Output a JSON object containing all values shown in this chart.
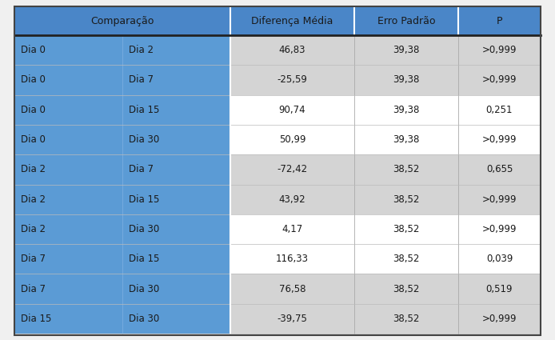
{
  "header": [
    "Comparação",
    "Diferença Média",
    "Erro Padrão",
    "P"
  ],
  "rows": [
    [
      "Dia 0",
      "Dia 2",
      "46,83",
      "39,38",
      ">0,999"
    ],
    [
      "Dia 0",
      "Dia 7",
      "-25,59",
      "39,38",
      ">0,999"
    ],
    [
      "Dia 0",
      "Dia 15",
      "90,74",
      "39,38",
      "0,251"
    ],
    [
      "Dia 0",
      "Dia 30",
      "50,99",
      "39,38",
      ">0,999"
    ],
    [
      "Dia 2",
      "Dia 7",
      "-72,42",
      "38,52",
      "0,655"
    ],
    [
      "Dia 2",
      "Dia 15",
      "43,92",
      "38,52",
      ">0,999"
    ],
    [
      "Dia 2",
      "Dia 30",
      "4,17",
      "38,52",
      ">0,999"
    ],
    [
      "Dia 7",
      "Dia 15",
      "116,33",
      "38,52",
      "0,039"
    ],
    [
      "Dia 7",
      "Dia 30",
      "76,58",
      "38,52",
      "0,519"
    ],
    [
      "Dia 15",
      "Dia 30",
      "-39,75",
      "38,52",
      ">0,999"
    ]
  ],
  "header_bg": "#4a86c8",
  "row_bg_blue": "#5b9bd5",
  "right_bg_pattern": [
    "#d4d4d4",
    "#d4d4d4",
    "#ffffff",
    "#ffffff",
    "#d4d4d4",
    "#d4d4d4",
    "#ffffff",
    "#ffffff",
    "#d4d4d4",
    "#d4d4d4"
  ],
  "text_color": "#1a1a1a",
  "header_text_color": "#1a1a1a",
  "divider_color_main": "#2a2a2a",
  "divider_color_vert": "#ffffff",
  "figsize": [
    6.94,
    4.25
  ],
  "dpi": 100,
  "fig_bg": "#f0f0f0"
}
